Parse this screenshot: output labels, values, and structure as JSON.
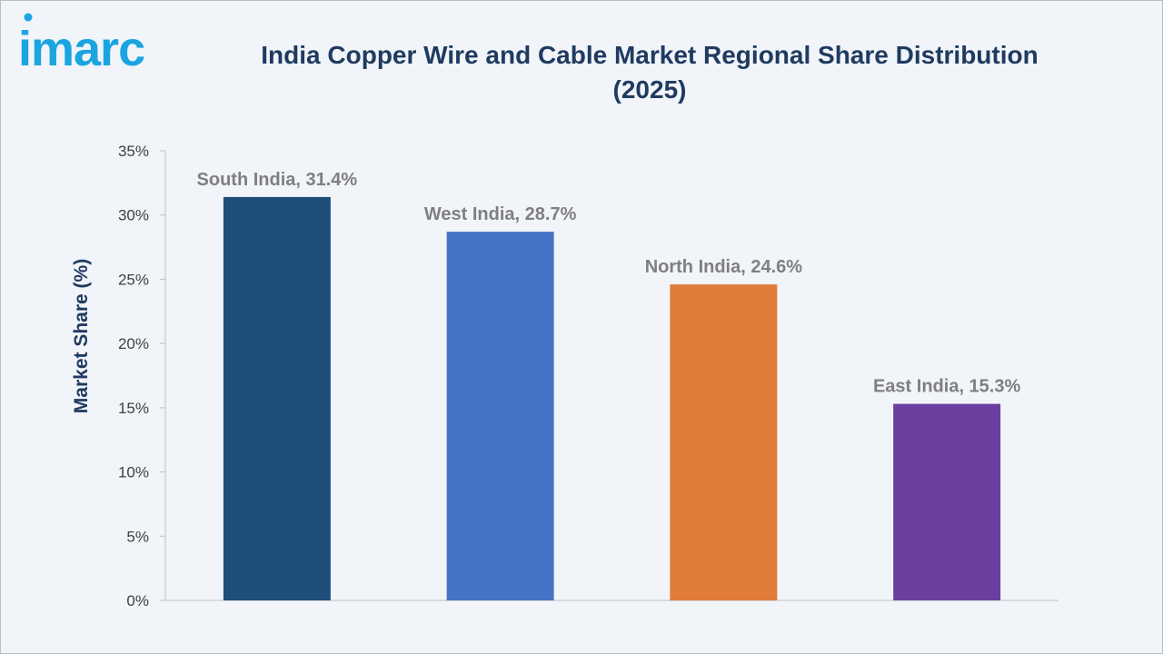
{
  "brand": {
    "logo_text": "imarc",
    "logo_color": "#1aa5e0"
  },
  "header": {
    "title_line1": "India Copper Wire and Cable Market Regional Share Distribution",
    "title_line2": "(2025)"
  },
  "chart_data": {
    "type": "bar",
    "title": "India Copper Wire and Cable Market Regional Share Distribution (2025)",
    "xlabel": "",
    "ylabel": "Market Share (%)",
    "ylim": [
      0,
      35
    ],
    "y_ticks": [
      0,
      5,
      10,
      15,
      20,
      25,
      30,
      35
    ],
    "y_tick_suffix": "%",
    "categories": [
      "South India",
      "West India",
      "North India",
      "East India"
    ],
    "values": [
      31.4,
      28.7,
      24.6,
      15.3
    ],
    "data_labels": [
      "South India, 31.4%",
      "West India, 28.7%",
      "North India, 24.6%",
      "East India, 15.3%"
    ],
    "colors": [
      "#1f4e79",
      "#4472c4",
      "#e07b39",
      "#6b3fa0"
    ],
    "grid": false,
    "legend": "none"
  }
}
